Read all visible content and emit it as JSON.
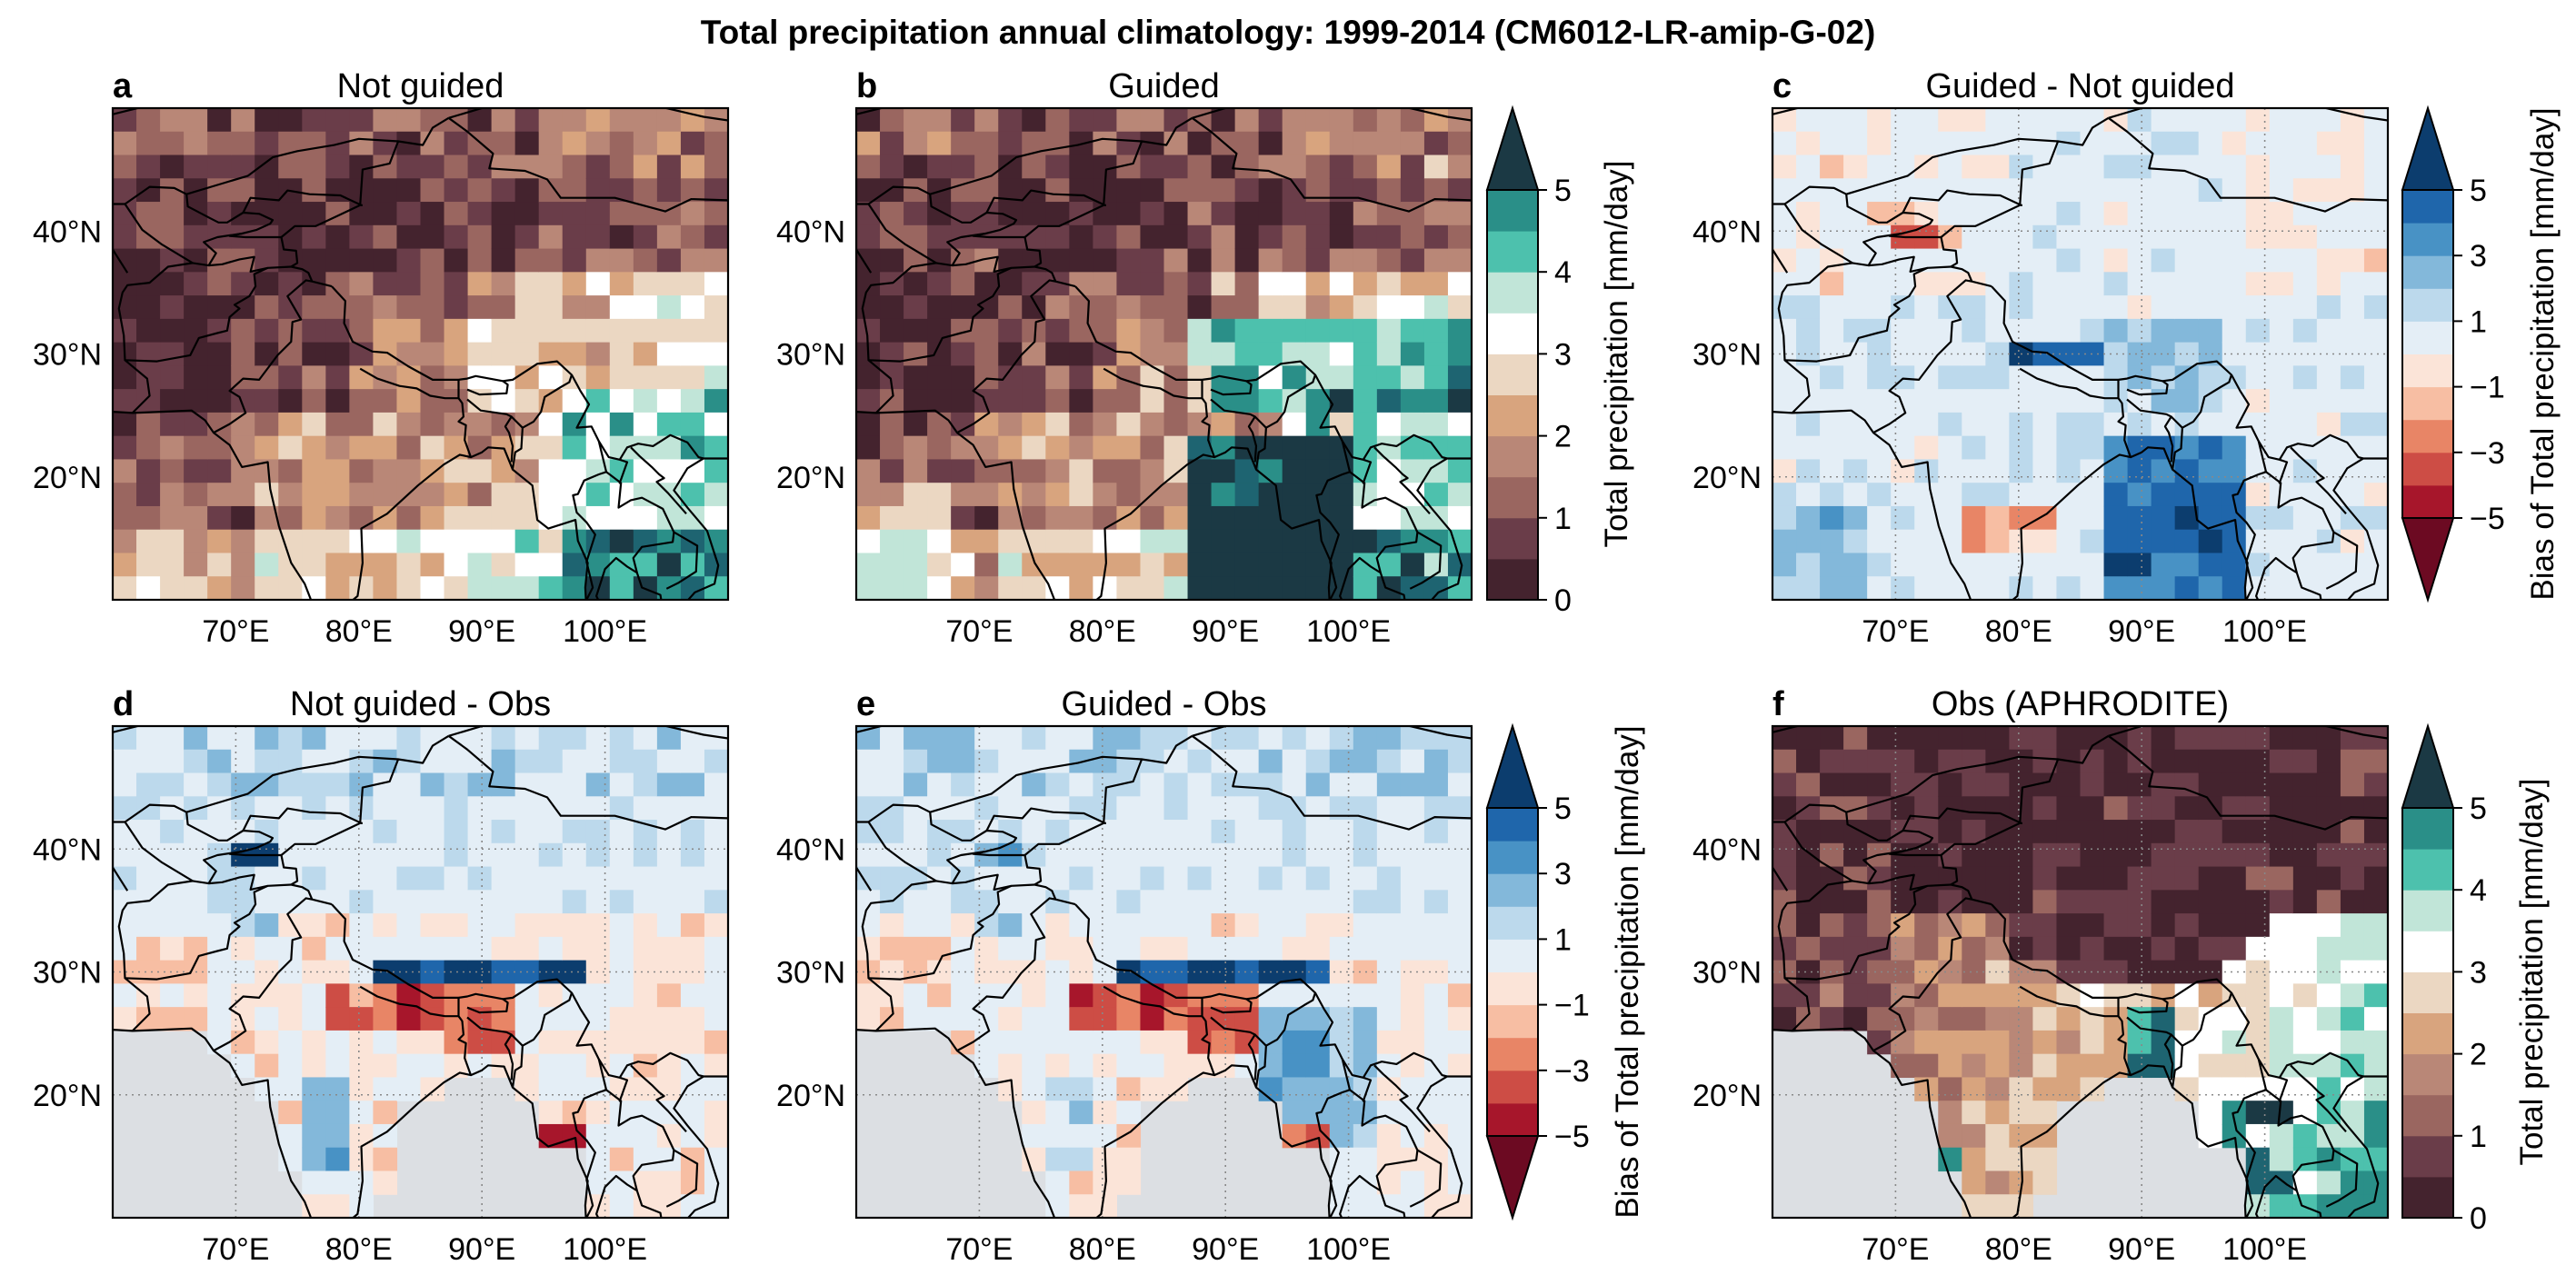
{
  "figure": {
    "title": "Total precipitation annual climatology: 1999-2014 (CM6012-LR-amip-G-02)"
  },
  "colors": {
    "precip_levels": [
      "#44232e",
      "#6a3d49",
      "#9a6660",
      "#b98777",
      "#d8a47e",
      "#ebd7c2",
      "#ffffff",
      "#c1e5d8",
      "#4dc1ad",
      "#2a8f88",
      "#1e6471",
      "#1b3944"
    ],
    "bias_levels": [
      "#6c0a22",
      "#a7162b",
      "#cd4d45",
      "#e88566",
      "#f7bea3",
      "#fbe4d8",
      "#e4eef6",
      "#bcd9ec",
      "#83b8da",
      "#4892c5",
      "#1f66ab",
      "#0c3d6e"
    ],
    "land_mask": "#dcdfe3",
    "coast": "#000000",
    "grid": "#888888"
  },
  "chart_data": [
    {
      "panel": "a",
      "type": "heatmap",
      "title": "Not guided",
      "field": "precip",
      "lon_range": [
        60,
        110
      ],
      "lat_range": [
        10,
        50
      ],
      "x_ticks": [
        "70°E",
        "80°E",
        "90°E",
        "100°E"
      ],
      "y_ticks": [
        "20°N",
        "30°N",
        "40°N"
      ],
      "grid": false,
      "mask_ocean": false
    },
    {
      "panel": "b",
      "type": "heatmap",
      "title": "Guided",
      "field": "precip",
      "lon_range": [
        60,
        110
      ],
      "lat_range": [
        10,
        50
      ],
      "x_ticks": [
        "70°E",
        "80°E",
        "90°E",
        "100°E"
      ],
      "y_ticks": [
        "20°N",
        "30°N",
        "40°N"
      ],
      "grid": false,
      "mask_ocean": false
    },
    {
      "panel": "c",
      "type": "heatmap",
      "title": "Guided - Not guided",
      "field": "bias_cn",
      "lon_range": [
        60,
        110
      ],
      "lat_range": [
        10,
        50
      ],
      "x_ticks": [
        "70°E",
        "80°E",
        "90°E",
        "100°E"
      ],
      "y_ticks": [
        "20°N",
        "30°N",
        "40°N"
      ],
      "grid": true,
      "mask_ocean": false
    },
    {
      "panel": "d",
      "type": "heatmap",
      "title": "Not guided - Obs",
      "field": "bias_obs",
      "lon_range": [
        60,
        110
      ],
      "lat_range": [
        10,
        50
      ],
      "x_ticks": [
        "70°E",
        "80°E",
        "90°E",
        "100°E"
      ],
      "y_ticks": [
        "20°N",
        "30°N",
        "40°N"
      ],
      "grid": true,
      "mask_ocean": true
    },
    {
      "panel": "e",
      "type": "heatmap",
      "title": "Guided - Obs",
      "field": "bias_obs",
      "lon_range": [
        60,
        110
      ],
      "lat_range": [
        10,
        50
      ],
      "x_ticks": [
        "70°E",
        "80°E",
        "90°E",
        "100°E"
      ],
      "y_ticks": [
        "20°N",
        "30°N",
        "40°N"
      ],
      "grid": true,
      "mask_ocean": true
    },
    {
      "panel": "f",
      "type": "heatmap",
      "title": "Obs (APHRODITE)",
      "field": "obs",
      "lon_range": [
        60,
        110
      ],
      "lat_range": [
        10,
        50
      ],
      "x_ticks": [
        "70°E",
        "80°E",
        "90°E",
        "100°E"
      ],
      "y_ticks": [
        "20°N",
        "30°N",
        "40°N"
      ],
      "grid": true,
      "mask_ocean": true
    }
  ],
  "colorbars": [
    {
      "id": "cb1",
      "label": "Total precipitation [mm/day]",
      "ticks": [
        "0",
        "1",
        "2",
        "3",
        "4",
        "5"
      ],
      "scale": "precip",
      "extend": "max"
    },
    {
      "id": "cb2",
      "label": "Bias of Total precipitation [mm/day]",
      "ticks": [
        "−5",
        "−3",
        "−1",
        "1",
        "3",
        "5"
      ],
      "scale": "bias",
      "extend": "both"
    },
    {
      "id": "cb3",
      "label": "Bias of Total precipitation [mm/day]",
      "ticks": [
        "−5",
        "−3",
        "−1",
        "1",
        "3",
        "5"
      ],
      "scale": "bias",
      "extend": "both"
    },
    {
      "id": "cb4",
      "label": "Total precipitation [mm/day]",
      "ticks": [
        "0",
        "1",
        "2",
        "3",
        "4",
        "5"
      ],
      "scale": "precip",
      "extend": "max"
    }
  ]
}
